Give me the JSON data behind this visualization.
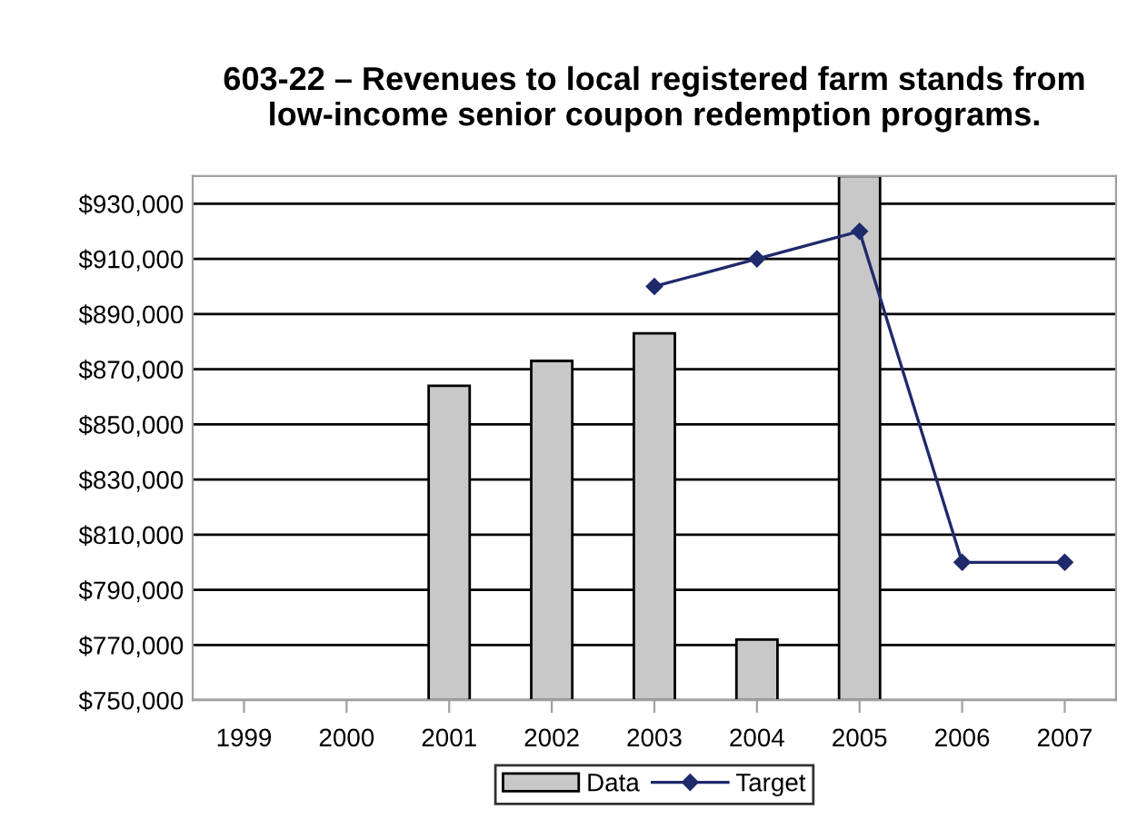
{
  "chart_data": {
    "type": "bar",
    "title": "603-22 – Revenues to local registered farm stands from low-income senior coupon redemption programs.",
    "categories": [
      "1999",
      "2000",
      "2001",
      "2002",
      "2003",
      "2004",
      "2005",
      "2006",
      "2007"
    ],
    "series": [
      {
        "name": "Data",
        "color": "#c8c8c8",
        "values": [
          null,
          null,
          864000,
          873000,
          883000,
          772000,
          940000,
          null,
          null
        ]
      },
      {
        "name": "Target",
        "type": "line",
        "color": "#1f2a6b",
        "values": [
          null,
          null,
          null,
          null,
          900000,
          910000,
          920000,
          800000,
          800000
        ]
      }
    ],
    "ylim": [
      750000,
      940000
    ],
    "yticks": [
      {
        "value": 750000,
        "label": "$750,000"
      },
      {
        "value": 770000,
        "label": "$770,000"
      },
      {
        "value": 790000,
        "label": "$790,000"
      },
      {
        "value": 810000,
        "label": "$810,000"
      },
      {
        "value": 830000,
        "label": "$830,000"
      },
      {
        "value": 850000,
        "label": "$850,000"
      },
      {
        "value": 870000,
        "label": "$870,000"
      },
      {
        "value": 890000,
        "label": "$890,000"
      },
      {
        "value": 910000,
        "label": "$910,000"
      },
      {
        "value": 930000,
        "label": "$930,000"
      }
    ],
    "grid": "y",
    "legend": "bottom",
    "marker": "diamond",
    "line_style": "solid"
  }
}
